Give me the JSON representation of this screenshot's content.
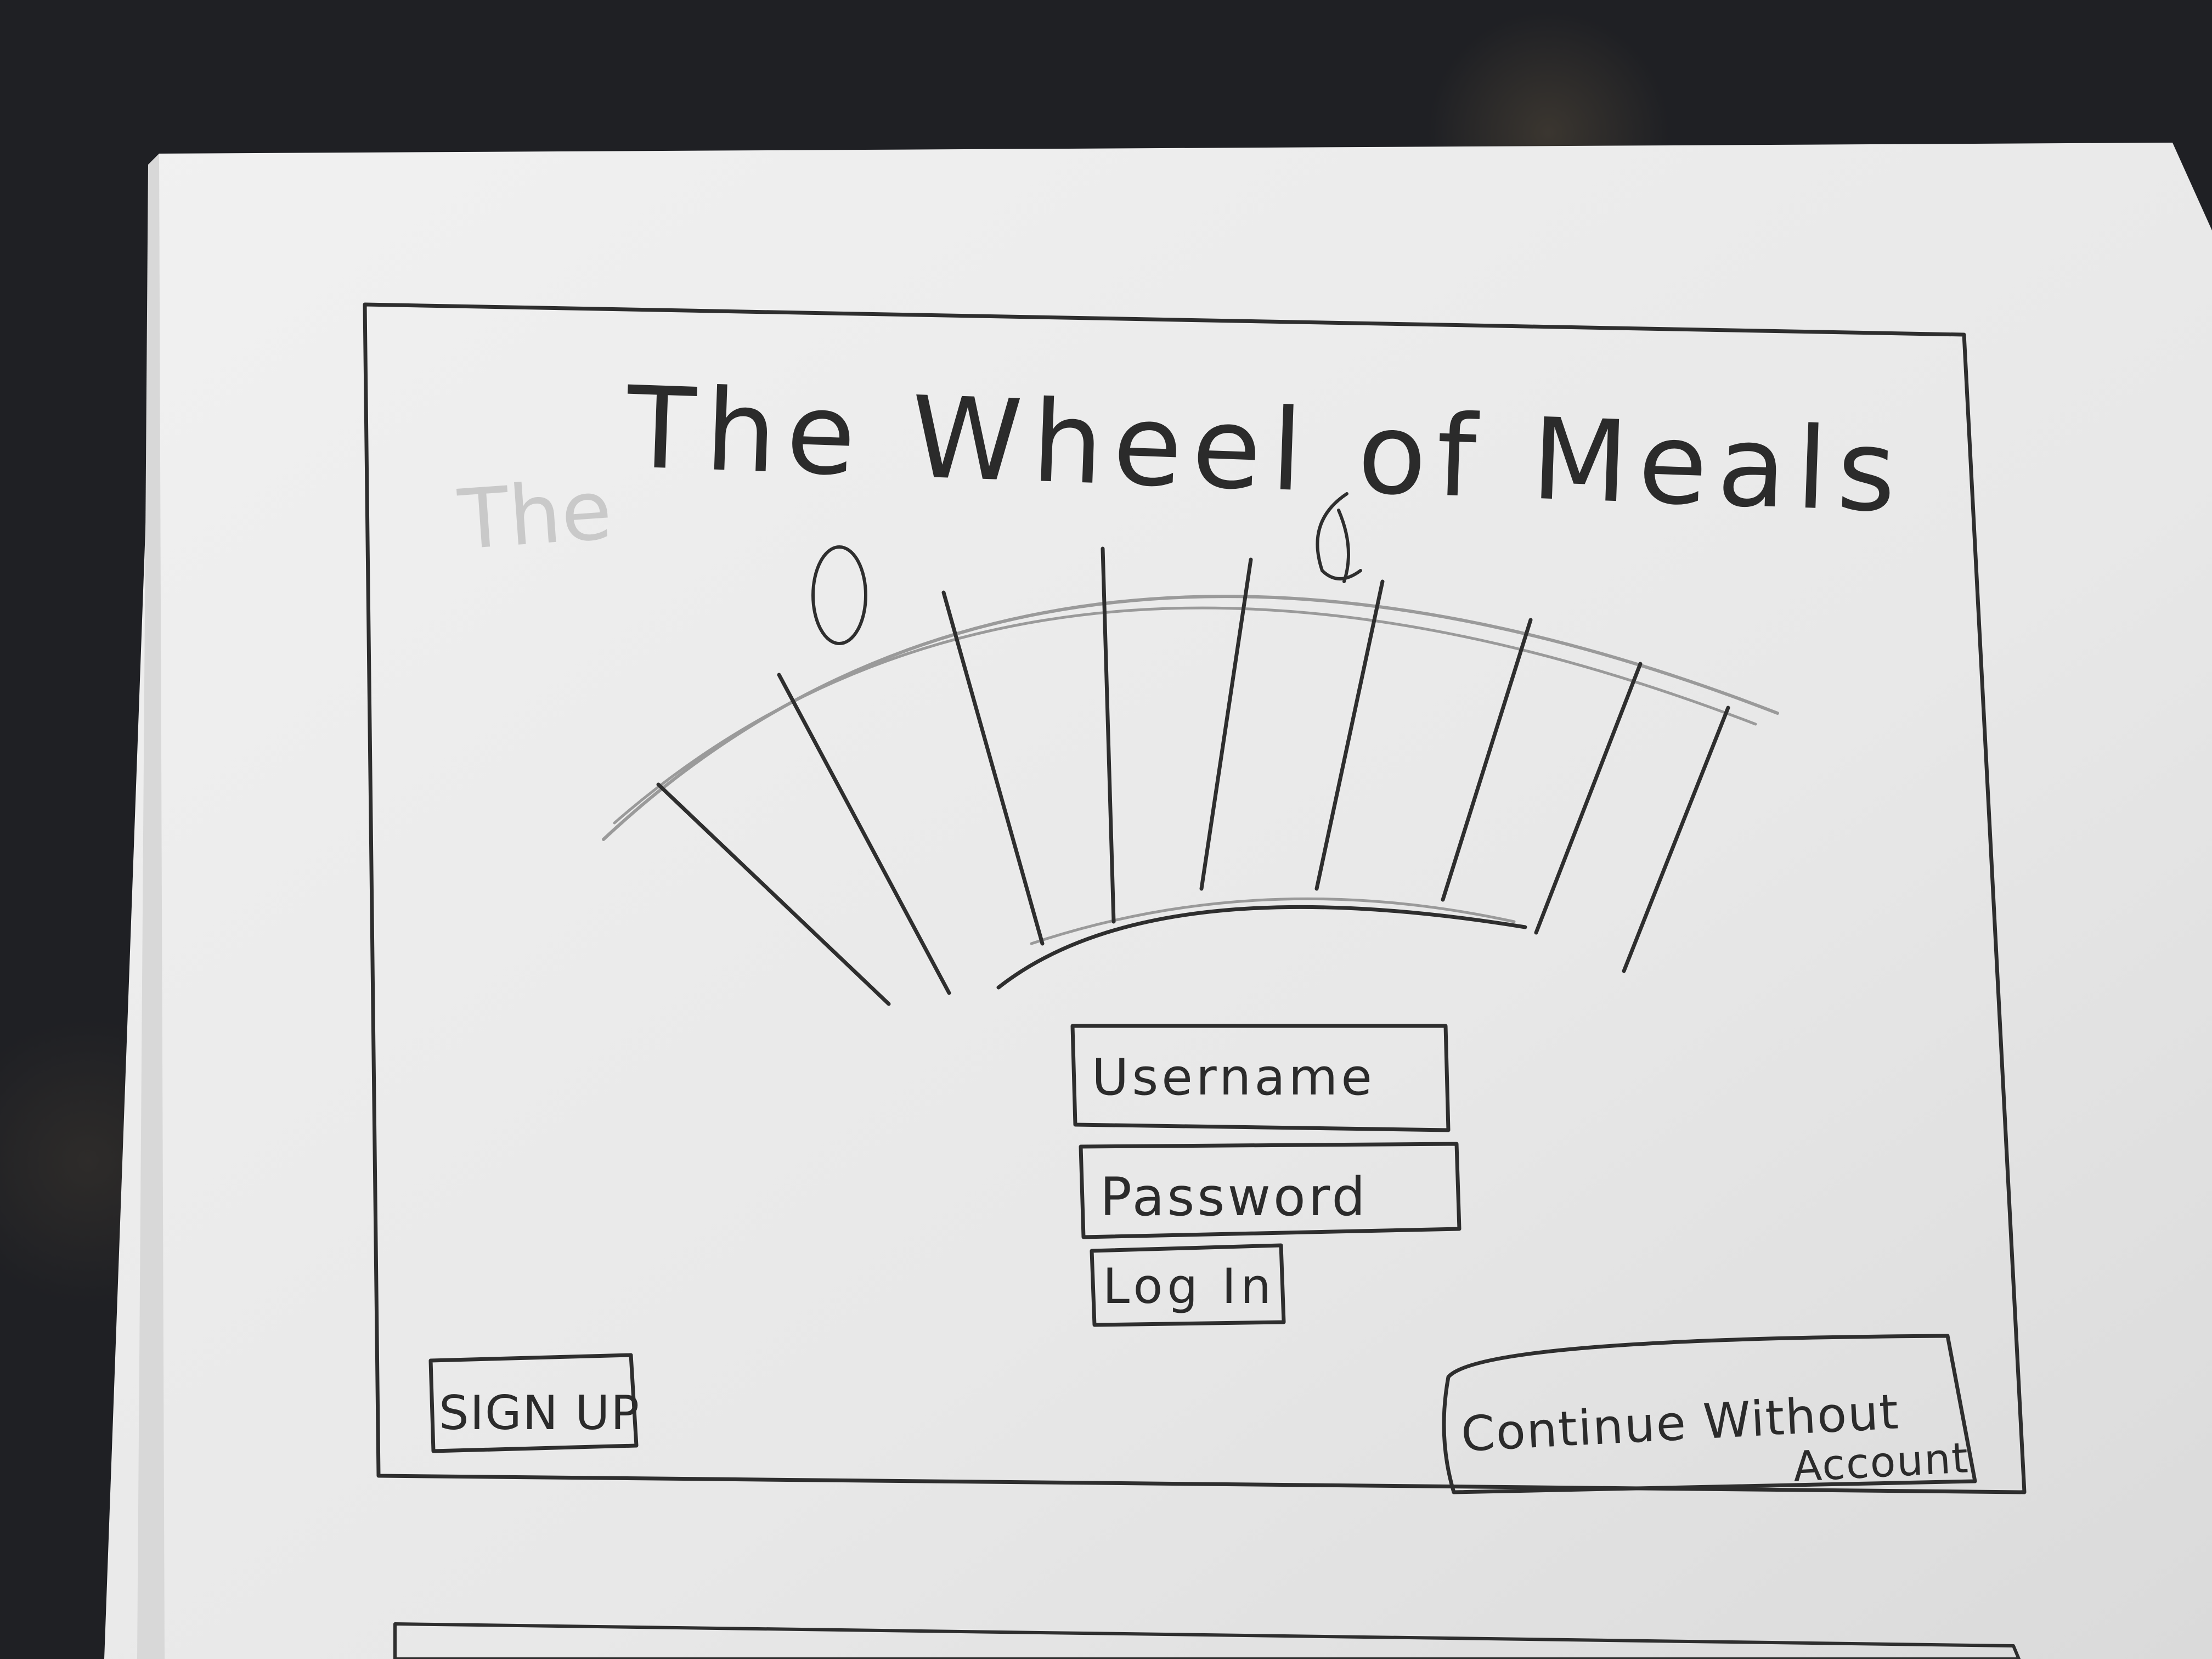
{
  "app": {
    "title": "The Wheel of Meals"
  },
  "login": {
    "username_placeholder": "Username",
    "password_placeholder": "Password",
    "login_label": "Log In"
  },
  "footer": {
    "signup_label": "SIGN UP",
    "continue_label_line1": "Continue Without",
    "continue_label_line2": "Account"
  },
  "colors": {
    "paper": "#efefef",
    "ink": "#2e2e2e",
    "background": "#1f2024"
  },
  "wheel": {
    "segment_count": 8
  }
}
